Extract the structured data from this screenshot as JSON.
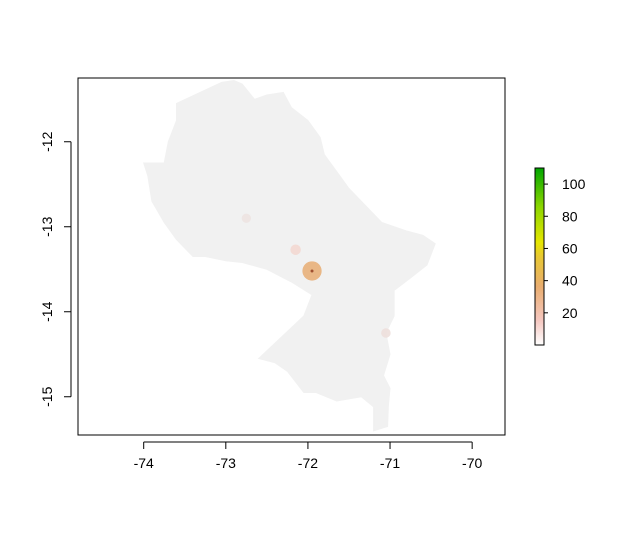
{
  "chart_data": {
    "type": "heatmap",
    "title": "",
    "xlabel": "",
    "ylabel": "",
    "xlim": [
      -74.8,
      -69.6
    ],
    "ylim": [
      -15.45,
      -11.25
    ],
    "x_ticks": [
      -74,
      -73,
      -72,
      -71,
      -70
    ],
    "x_tick_labels": [
      "-74",
      "-73",
      "-72",
      "-71",
      "-70"
    ],
    "y_ticks": [
      -12,
      -13,
      -14,
      -15
    ],
    "y_tick_labels": [
      "-12",
      "-13",
      "-14",
      "-15"
    ],
    "legend": {
      "placement": "right",
      "range": [
        0,
        110
      ],
      "ticks": [
        20,
        40,
        60,
        80,
        100
      ],
      "tick_labels": [
        "20",
        "40",
        "60",
        "80",
        "100"
      ],
      "colors": [
        "#ffffff",
        "#f5c7c0",
        "#e9ad6f",
        "#e8c832",
        "#e6e600",
        "#8cd600",
        "#00a600"
      ]
    },
    "region_fill": "#f1f1f1",
    "region_outline": [
      [
        -73.6,
        -11.55
      ],
      [
        -73.05,
        -11.3
      ],
      [
        -72.9,
        -11.28
      ],
      [
        -72.8,
        -11.32
      ],
      [
        -72.65,
        -11.5
      ],
      [
        -72.5,
        -11.45
      ],
      [
        -72.3,
        -11.42
      ],
      [
        -72.2,
        -11.6
      ],
      [
        -72.0,
        -11.75
      ],
      [
        -71.85,
        -11.95
      ],
      [
        -71.8,
        -12.15
      ],
      [
        -71.65,
        -12.35
      ],
      [
        -71.5,
        -12.55
      ],
      [
        -71.3,
        -12.75
      ],
      [
        -71.1,
        -12.95
      ],
      [
        -70.8,
        -13.05
      ],
      [
        -70.6,
        -13.1
      ],
      [
        -70.45,
        -13.2
      ],
      [
        -70.55,
        -13.45
      ],
      [
        -70.75,
        -13.6
      ],
      [
        -70.95,
        -13.75
      ],
      [
        -70.95,
        -14.05
      ],
      [
        -71.05,
        -14.25
      ],
      [
        -71.0,
        -14.5
      ],
      [
        -71.08,
        -14.75
      ],
      [
        -71.0,
        -14.9
      ],
      [
        -71.02,
        -15.1
      ],
      [
        -71.03,
        -15.35
      ],
      [
        -71.2,
        -15.4
      ],
      [
        -71.2,
        -15.12
      ],
      [
        -71.35,
        -15.0
      ],
      [
        -71.65,
        -15.05
      ],
      [
        -71.9,
        -14.95
      ],
      [
        -72.05,
        -14.95
      ],
      [
        -72.25,
        -14.7
      ],
      [
        -72.4,
        -14.6
      ],
      [
        -72.6,
        -14.55
      ],
      [
        -72.05,
        -14.05
      ],
      [
        -71.95,
        -13.8
      ],
      [
        -72.2,
        -13.65
      ],
      [
        -72.5,
        -13.5
      ],
      [
        -72.8,
        -13.42
      ],
      [
        -73.0,
        -13.4
      ],
      [
        -73.25,
        -13.35
      ],
      [
        -73.4,
        -13.35
      ],
      [
        -73.5,
        -13.25
      ],
      [
        -73.6,
        -13.15
      ],
      [
        -73.75,
        -12.95
      ],
      [
        -73.9,
        -12.7
      ],
      [
        -73.95,
        -12.4
      ],
      [
        -74.0,
        -12.25
      ],
      [
        -73.75,
        -12.25
      ],
      [
        -73.7,
        -12.0
      ],
      [
        -73.6,
        -11.75
      ]
    ],
    "highlights": [
      {
        "lon": -71.95,
        "lat": -13.52,
        "value": 45,
        "color": "#e8b07a"
      },
      {
        "lon": -72.15,
        "lat": -13.27,
        "value": 10,
        "color": "#f3d8d2"
      },
      {
        "lon": -72.75,
        "lat": -12.9,
        "value": 5,
        "color": "#ede3e1"
      },
      {
        "lon": -71.05,
        "lat": -14.25,
        "value": 6,
        "color": "#eddfdb"
      }
    ]
  }
}
